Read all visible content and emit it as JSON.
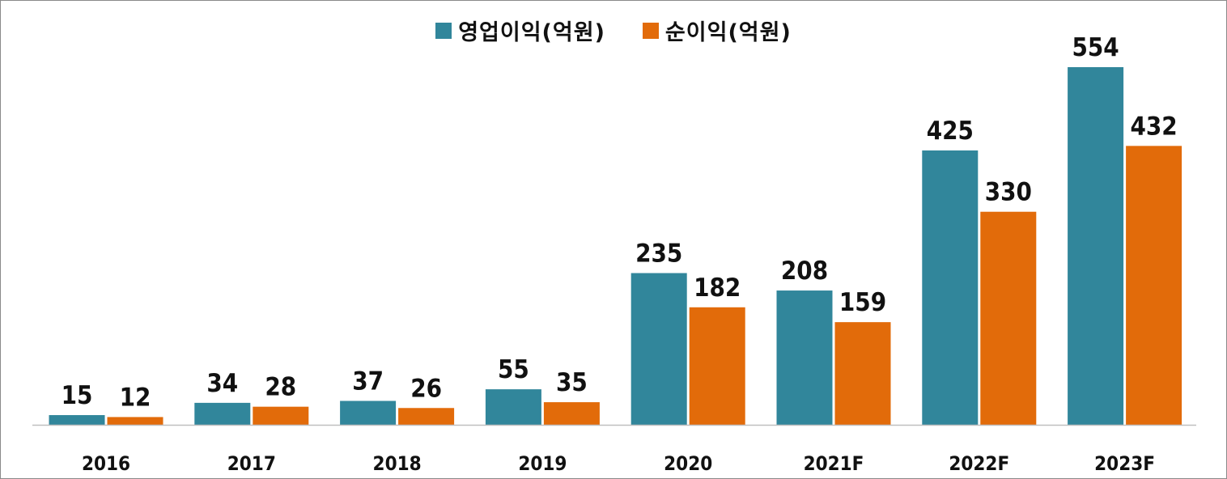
{
  "chart_data": {
    "type": "bar",
    "title": "",
    "xlabel": "",
    "ylabel": "",
    "ylim": [
      0,
      554
    ],
    "grid": false,
    "legend_position": "top-center",
    "categories": [
      "2016",
      "2017",
      "2018",
      "2019",
      "2020",
      "2021F",
      "2022F",
      "2023F"
    ],
    "series": [
      {
        "name": "영업이익(억원)",
        "color": "#31869b",
        "values": [
          15,
          34,
          37,
          55,
          235,
          208,
          425,
          554
        ]
      },
      {
        "name": "순이익(억원)",
        "color": "#e26b0a",
        "values": [
          12,
          28,
          26,
          35,
          182,
          159,
          330,
          432
        ]
      }
    ]
  }
}
